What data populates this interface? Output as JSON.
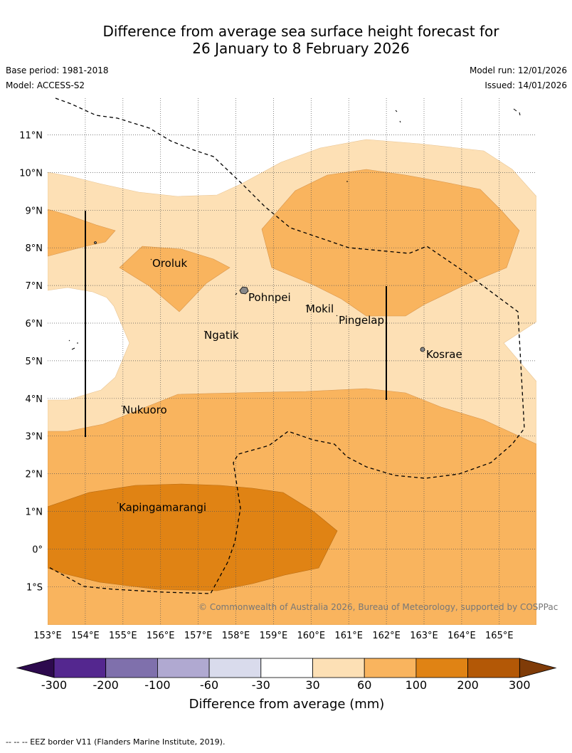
{
  "header": {
    "title_line1": "Difference from average sea surface height forecast for",
    "title_line2": "26 January to 8 February 2026",
    "base_period": "Base period: 1981-2018",
    "model": "Model: ACCESS-S2",
    "model_run": "Model run: 12/01/2026",
    "issued": "Issued: 14/01/2026"
  },
  "map": {
    "lon_labels": [
      "153°E",
      "154°E",
      "155°E",
      "156°E",
      "157°E",
      "158°E",
      "159°E",
      "160°E",
      "161°E",
      "162°E",
      "163°E",
      "164°E",
      "165°E"
    ],
    "lat_labels": [
      "11°N",
      "10°N",
      "9°N",
      "8°N",
      "7°N",
      "6°N",
      "5°N",
      "4°N",
      "3°N",
      "2°N",
      "1°N",
      "0°",
      "1°S"
    ],
    "places": {
      "oroluk": "Oroluk",
      "pohnpei": "Pohnpei",
      "mokil": "Mokil",
      "pingelap": "Pingelap",
      "ngatik": "Ngatik",
      "kosrae": "Kosrae",
      "nukuoro": "Nukuoro",
      "kapingamarangi": "Kapingamarangi"
    },
    "copyright": "© Commonwealth of Australia 2026, Bureau of Meteorology, supported by COSPPac"
  },
  "colorbar": {
    "ticks": [
      "-300",
      "-200",
      "-100",
      "-60",
      "-30",
      "30",
      "60",
      "100",
      "200",
      "300"
    ],
    "title": "Difference from average (mm)",
    "colors": {
      "below_min": "#2d0a4e",
      "c1": "#54278f",
      "c2": "#7f70ac",
      "c3": "#b0a9d1",
      "c4": "#d9dbec",
      "c5": "#ffffff",
      "c6": "#fde0b5",
      "c7": "#f9b45e",
      "c8": "#e08314",
      "c9": "#b35806",
      "above_max": "#7f3b08"
    }
  },
  "footnote": "--  --  -- EEZ border V11 (Flanders Marine Institute, 2019)."
}
